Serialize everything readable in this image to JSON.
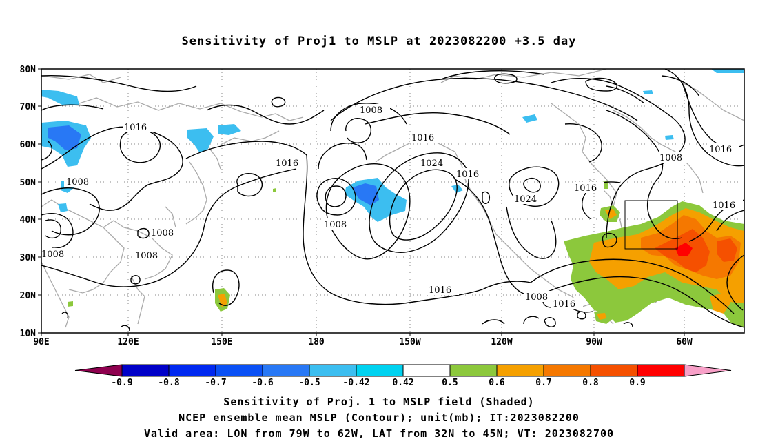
{
  "title": "Sensitivity of Proj1 to MSLP at 2023082200 +3.5 day",
  "lat_labels": [
    "80N",
    "70N",
    "60N",
    "50N",
    "40N",
    "30N",
    "20N",
    "10N"
  ],
  "lon_labels": [
    "90E",
    "120E",
    "150E",
    "180",
    "150W",
    "120W",
    "90W",
    "60W"
  ],
  "contour_labels": [
    "1016",
    "1008",
    "1008",
    "1016",
    "1008",
    "1008",
    "1008",
    "1008",
    "1016",
    "1024",
    "1016",
    "1008",
    "1024",
    "1016",
    "1016",
    "1008",
    "1016",
    "1016",
    "1008",
    "1016"
  ],
  "colorbar": {
    "labels": [
      "-0.9",
      "-0.8",
      "-0.7",
      "-0.6",
      "-0.5",
      "-0.42",
      "0.42",
      "0.5",
      "0.6",
      "0.7",
      "0.8",
      "0.9"
    ],
    "colors": [
      "#8f004f",
      "#0000c8",
      "#0028f0",
      "#0a50f5",
      "#2878f5",
      "#3cbef0",
      "#00d2f0",
      "#ffffff",
      "#8cc83c",
      "#f5a000",
      "#f57800",
      "#f55000",
      "#ff0000",
      "#f8a0c8"
    ]
  },
  "footer": {
    "line1": "Sensitivity of Proj. 1 to MSLP field (Shaded)",
    "line2": "NCEP ensemble mean MSLP (Contour); unit(mb); IT:2023082200",
    "line3": "Valid area: LON from 79W to 62W, LAT from 32N to 45N; VT: 2023082700"
  }
}
